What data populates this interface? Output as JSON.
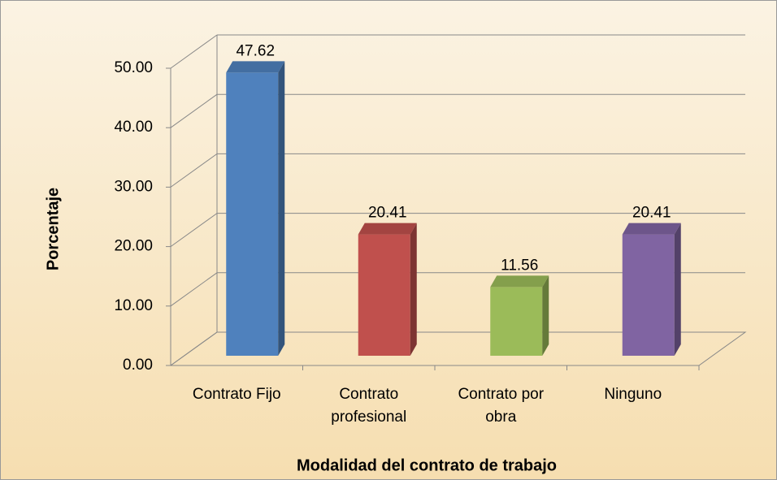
{
  "chart_data": {
    "type": "bar3d",
    "x_label": "Modalidad del contrato de trabajo",
    "y_label": "Porcentaje",
    "categories": [
      [
        "Contrato Fijo"
      ],
      [
        "Contrato",
        "profesional"
      ],
      [
        "Contrato por",
        "obra"
      ],
      [
        "Ninguno"
      ]
    ],
    "values": [
      47.62,
      20.41,
      11.56,
      20.41
    ],
    "colors": [
      "#4f81bd",
      "#c0504d",
      "#9bbb59",
      "#8064a2"
    ],
    "ylim": [
      0,
      50
    ],
    "yticks": [
      {
        "value": 0,
        "label": "0.00"
      },
      {
        "value": 10,
        "label": "10.00"
      },
      {
        "value": 20,
        "label": "20.00"
      },
      {
        "value": 30,
        "label": "30.00"
      },
      {
        "value": 40,
        "label": "40.00"
      },
      {
        "value": 50,
        "label": "50.00"
      }
    ],
    "grid": true
  }
}
